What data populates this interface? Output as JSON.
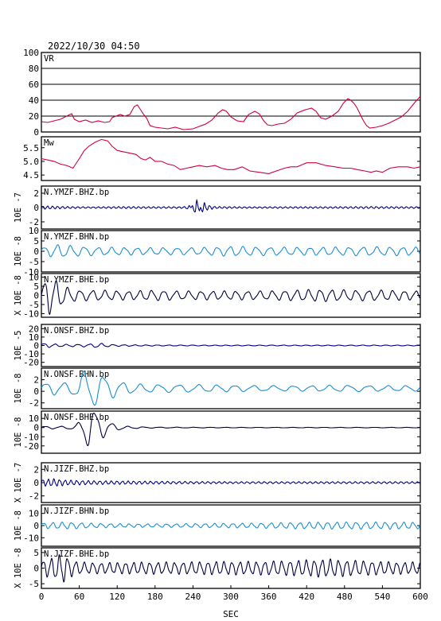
{
  "chart_data": {
    "type": "line",
    "title": "2022/10/30 04:50",
    "xlabel": "SEC",
    "xlim": [
      0,
      600
    ],
    "xticks": [
      "0",
      "60",
      "120",
      "180",
      "240",
      "300",
      "360",
      "420",
      "480",
      "540",
      "600"
    ],
    "panels": [
      {
        "label": "VR",
        "unit": "",
        "ylim": [
          0,
          100
        ],
        "yticks": [
          "0",
          "20",
          "40",
          "60",
          "80",
          "100"
        ],
        "grid": true,
        "color": "#d0003c",
        "points": [
          [
            0,
            13
          ],
          [
            10,
            12
          ],
          [
            20,
            14
          ],
          [
            30,
            16
          ],
          [
            40,
            20
          ],
          [
            48,
            23
          ],
          [
            52,
            16
          ],
          [
            60,
            13
          ],
          [
            70,
            15
          ],
          [
            80,
            12
          ],
          [
            90,
            14
          ],
          [
            100,
            12
          ],
          [
            108,
            13
          ],
          [
            112,
            18
          ],
          [
            118,
            20
          ],
          [
            125,
            22
          ],
          [
            132,
            20
          ],
          [
            140,
            22
          ],
          [
            147,
            32
          ],
          [
            152,
            34
          ],
          [
            157,
            28
          ],
          [
            162,
            22
          ],
          [
            167,
            17
          ],
          [
            172,
            8
          ],
          [
            180,
            6
          ],
          [
            190,
            5
          ],
          [
            200,
            4
          ],
          [
            212,
            6
          ],
          [
            225,
            3
          ],
          [
            240,
            4
          ],
          [
            250,
            7
          ],
          [
            260,
            10
          ],
          [
            270,
            15
          ],
          [
            280,
            24
          ],
          [
            287,
            28
          ],
          [
            293,
            26
          ],
          [
            300,
            19
          ],
          [
            310,
            14
          ],
          [
            320,
            13
          ],
          [
            328,
            22
          ],
          [
            338,
            26
          ],
          [
            345,
            23
          ],
          [
            352,
            14
          ],
          [
            358,
            9
          ],
          [
            365,
            8
          ],
          [
            375,
            10
          ],
          [
            385,
            11
          ],
          [
            395,
            16
          ],
          [
            405,
            24
          ],
          [
            418,
            28
          ],
          [
            428,
            30
          ],
          [
            435,
            26
          ],
          [
            442,
            18
          ],
          [
            450,
            16
          ],
          [
            460,
            20
          ],
          [
            470,
            26
          ],
          [
            478,
            36
          ],
          [
            485,
            42
          ],
          [
            490,
            40
          ],
          [
            495,
            36
          ],
          [
            500,
            30
          ],
          [
            505,
            22
          ],
          [
            510,
            14
          ],
          [
            515,
            8
          ],
          [
            520,
            5
          ],
          [
            530,
            6
          ],
          [
            540,
            8
          ],
          [
            550,
            11
          ],
          [
            560,
            15
          ],
          [
            570,
            19
          ],
          [
            580,
            26
          ],
          [
            590,
            36
          ],
          [
            600,
            45
          ]
        ]
      },
      {
        "label": "Mw",
        "unit": "",
        "ylim": [
          4.3,
          5.9
        ],
        "yticks": [
          "4.5",
          "5.0",
          "5.5"
        ],
        "grid": false,
        "color": "#d0003c",
        "points": [
          [
            0,
            5.1
          ],
          [
            10,
            5.05
          ],
          [
            20,
            5.0
          ],
          [
            30,
            4.9
          ],
          [
            40,
            4.85
          ],
          [
            50,
            4.75
          ],
          [
            60,
            5.1
          ],
          [
            68,
            5.4
          ],
          [
            75,
            5.55
          ],
          [
            85,
            5.7
          ],
          [
            95,
            5.8
          ],
          [
            105,
            5.75
          ],
          [
            112,
            5.55
          ],
          [
            120,
            5.4
          ],
          [
            130,
            5.35
          ],
          [
            140,
            5.3
          ],
          [
            150,
            5.25
          ],
          [
            158,
            5.1
          ],
          [
            165,
            5.05
          ],
          [
            172,
            5.15
          ],
          [
            180,
            5.0
          ],
          [
            190,
            5.0
          ],
          [
            200,
            4.9
          ],
          [
            210,
            4.85
          ],
          [
            220,
            4.7
          ],
          [
            230,
            4.75
          ],
          [
            240,
            4.8
          ],
          [
            250,
            4.85
          ],
          [
            262,
            4.8
          ],
          [
            275,
            4.85
          ],
          [
            285,
            4.75
          ],
          [
            295,
            4.7
          ],
          [
            305,
            4.7
          ],
          [
            318,
            4.8
          ],
          [
            330,
            4.65
          ],
          [
            345,
            4.6
          ],
          [
            360,
            4.55
          ],
          [
            372,
            4.65
          ],
          [
            385,
            4.75
          ],
          [
            395,
            4.8
          ],
          [
            405,
            4.8
          ],
          [
            420,
            4.95
          ],
          [
            435,
            4.95
          ],
          [
            450,
            4.85
          ],
          [
            465,
            4.8
          ],
          [
            478,
            4.75
          ],
          [
            490,
            4.75
          ],
          [
            500,
            4.7
          ],
          [
            512,
            4.65
          ],
          [
            522,
            4.6
          ],
          [
            530,
            4.65
          ],
          [
            540,
            4.6
          ],
          [
            552,
            4.75
          ],
          [
            565,
            4.8
          ],
          [
            580,
            4.8
          ],
          [
            590,
            4.75
          ],
          [
            600,
            4.8
          ]
        ]
      },
      {
        "label": "N.YMZF.BHZ.bp",
        "unit": "10E -7",
        "ylim": [
          -3,
          3
        ],
        "yticks": [
          "-2",
          "0",
          "2"
        ],
        "grid": false,
        "color": "#000080",
        "baseline": 0,
        "wave_points": [
          [
            0,
            0.25
          ],
          [
            40,
            0.15
          ],
          [
            80,
            0.1
          ],
          [
            130,
            0.15
          ],
          [
            180,
            0.12
          ],
          [
            225,
            0.12
          ],
          [
            235,
            0.3
          ],
          [
            245,
            -1.2
          ],
          [
            250,
            -0.6
          ],
          [
            255,
            0.9
          ],
          [
            262,
            0.4
          ],
          [
            275,
            0.15
          ],
          [
            330,
            0.1
          ],
          [
            400,
            0.12
          ],
          [
            460,
            0.12
          ],
          [
            520,
            0.15
          ],
          [
            600,
            0.12
          ]
        ],
        "period": 8
      },
      {
        "label": "N.YMZF.BHN.bp",
        "unit": "10E -8",
        "ylim": [
          -10,
          10
        ],
        "yticks": [
          "-10",
          "-5",
          "0",
          "5",
          "10"
        ],
        "grid": false,
        "color": "#1a8fd0",
        "baseline": 0,
        "wave_points": [
          [
            0,
            2.5
          ],
          [
            10,
            2
          ],
          [
            20,
            3.5
          ],
          [
            40,
            3
          ],
          [
            60,
            2.5
          ],
          [
            90,
            2
          ],
          [
            120,
            2
          ],
          [
            160,
            1.8
          ],
          [
            200,
            1.8
          ],
          [
            250,
            1.8
          ],
          [
            300,
            2.5
          ],
          [
            340,
            2.2
          ],
          [
            390,
            2
          ],
          [
            440,
            2
          ],
          [
            500,
            2.2
          ],
          [
            560,
            2.2
          ],
          [
            600,
            2
          ]
        ],
        "period": 21
      },
      {
        "label": "N.YMZF.BHE.bp",
        "unit": "X 10E -8",
        "ylim": [
          -12,
          12
        ],
        "yticks": [
          "-10",
          "-5",
          "0",
          "5",
          "10"
        ],
        "grid": false,
        "color": "#000040",
        "baseline": 0,
        "wave_points": [
          [
            0,
            3
          ],
          [
            5,
            9
          ],
          [
            12,
            11
          ],
          [
            22,
            9
          ],
          [
            32,
            6
          ],
          [
            45,
            4
          ],
          [
            60,
            3
          ],
          [
            90,
            3
          ],
          [
            140,
            2.5
          ],
          [
            180,
            3
          ],
          [
            220,
            2.5
          ],
          [
            260,
            2.5
          ],
          [
            300,
            2.5
          ],
          [
            350,
            2.5
          ],
          [
            400,
            3
          ],
          [
            440,
            3.5
          ],
          [
            490,
            3
          ],
          [
            540,
            3
          ],
          [
            600,
            2.5
          ]
        ],
        "period": 19
      },
      {
        "label": "N.ONSF.BHZ.bp",
        "unit": "10E -5",
        "ylim": [
          -25,
          25
        ],
        "yticks": [
          "-20",
          "-10",
          "0",
          "10",
          "20"
        ],
        "grid": false,
        "color": "#000080",
        "baseline": 0,
        "wave_points": [
          [
            0,
            3
          ],
          [
            30,
            1.5
          ],
          [
            60,
            1.5
          ],
          [
            80,
            2
          ],
          [
            90,
            3
          ],
          [
            110,
            1.2
          ],
          [
            150,
            0.8
          ],
          [
            200,
            0.6
          ],
          [
            260,
            0.5
          ],
          [
            330,
            0.5
          ],
          [
            420,
            0.5
          ],
          [
            600,
            0.5
          ]
        ],
        "period": 18
      },
      {
        "label": "N.ONSF.BHN.bp",
        "unit": "10E -8",
        "ylim": [
          -3,
          4
        ],
        "yticks": [
          "-2",
          "0",
          "2"
        ],
        "grid": false,
        "color": "#1a8fd0",
        "baseline": 0.5,
        "wave_points": [
          [
            0,
            0.9
          ],
          [
            20,
            1.2
          ],
          [
            40,
            1
          ],
          [
            55,
            1.5
          ],
          [
            68,
            3.2
          ],
          [
            80,
            3.5
          ],
          [
            95,
            2.5
          ],
          [
            110,
            1.8
          ],
          [
            125,
            1.2
          ],
          [
            150,
            0.8
          ],
          [
            190,
            0.7
          ],
          [
            240,
            0.7
          ],
          [
            300,
            0.6
          ],
          [
            360,
            0.5
          ],
          [
            420,
            0.5
          ],
          [
            480,
            0.6
          ],
          [
            540,
            0.5
          ],
          [
            600,
            0.5
          ]
        ],
        "period": 30
      },
      {
        "label": "N.ONSF.BHE.bp",
        "unit": "10E -8",
        "ylim": [
          -28,
          18
        ],
        "yticks": [
          "-20",
          "-10",
          "0",
          "10"
        ],
        "grid": false,
        "color": "#000040",
        "baseline": 0,
        "wave_points": [
          [
            0,
            1.5
          ],
          [
            40,
            1.5
          ],
          [
            55,
            3
          ],
          [
            65,
            12
          ],
          [
            75,
            24
          ],
          [
            88,
            18
          ],
          [
            100,
            10
          ],
          [
            115,
            4
          ],
          [
            135,
            1.5
          ],
          [
            170,
            0.6
          ],
          [
            240,
            0.4
          ],
          [
            320,
            0.3
          ],
          [
            420,
            0.3
          ],
          [
            600,
            0.3
          ]
        ],
        "period": 26
      },
      {
        "label": "N.JIZF.BHZ.bp",
        "unit": "X 10E -7",
        "ylim": [
          -3,
          3
        ],
        "yticks": [
          "-2",
          "0",
          "2"
        ],
        "grid": false,
        "color": "#000080",
        "baseline": 0,
        "wave_points": [
          [
            0,
            0.5
          ],
          [
            20,
            0.6
          ],
          [
            40,
            0.4
          ],
          [
            80,
            0.3
          ],
          [
            140,
            0.25
          ],
          [
            200,
            0.2
          ],
          [
            300,
            0.15
          ],
          [
            400,
            0.15
          ],
          [
            500,
            0.15
          ],
          [
            600,
            0.15
          ]
        ],
        "period": 9
      },
      {
        "label": "N.JIZF.BHN.bp",
        "unit": "10E -8",
        "ylim": [
          -17,
          17
        ],
        "yticks": [
          "-10",
          "0",
          "10"
        ],
        "grid": false,
        "color": "#1a8fd0",
        "baseline": 0,
        "wave_points": [
          [
            0,
            2.5
          ],
          [
            40,
            3
          ],
          [
            80,
            2
          ],
          [
            140,
            1.5
          ],
          [
            200,
            1.5
          ],
          [
            260,
            1.8
          ],
          [
            320,
            2
          ],
          [
            380,
            2.5
          ],
          [
            440,
            3
          ],
          [
            500,
            3
          ],
          [
            560,
            3
          ],
          [
            600,
            2.8
          ]
        ],
        "period": 15
      },
      {
        "label": "N.JIZF.BHE.bp",
        "unit": "X 10E -8",
        "ylim": [
          -6.5,
          6.5
        ],
        "yticks": [
          "-5",
          "0",
          "5"
        ],
        "grid": false,
        "color": "#000040",
        "baseline": 0,
        "wave_points": [
          [
            0,
            2.5
          ],
          [
            20,
            3.5
          ],
          [
            35,
            5
          ],
          [
            45,
            3
          ],
          [
            60,
            2
          ],
          [
            100,
            1.8
          ],
          [
            160,
            2
          ],
          [
            220,
            2
          ],
          [
            280,
            2.2
          ],
          [
            340,
            2.2
          ],
          [
            400,
            2.5
          ],
          [
            450,
            3
          ],
          [
            500,
            2.5
          ],
          [
            560,
            2
          ],
          [
            600,
            2
          ]
        ],
        "period": 13
      }
    ]
  }
}
